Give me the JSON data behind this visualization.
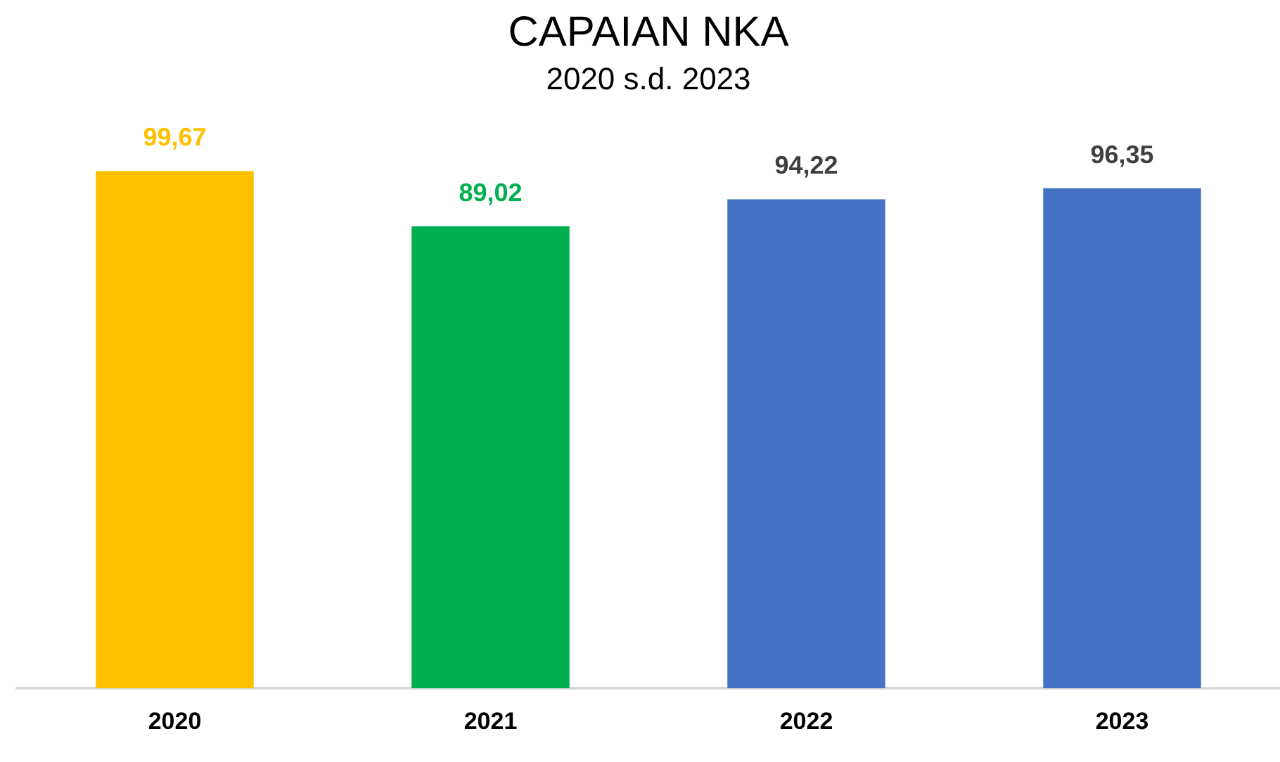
{
  "chart_data": {
    "type": "bar",
    "title": "CAPAIAN NKA",
    "subtitle": "2020 s.d. 2023",
    "categories": [
      "2020",
      "2021",
      "2022",
      "2023"
    ],
    "values": [
      99.67,
      89.02,
      94.22,
      96.35
    ],
    "colors": [
      "#ffc000",
      "#00b050",
      "#4472c4",
      "#4472c4"
    ],
    "value_labels": [
      "99,67",
      "89,02",
      "94,22",
      "96,35"
    ],
    "grid": false,
    "legend": false,
    "tick_labels": "x"
  }
}
